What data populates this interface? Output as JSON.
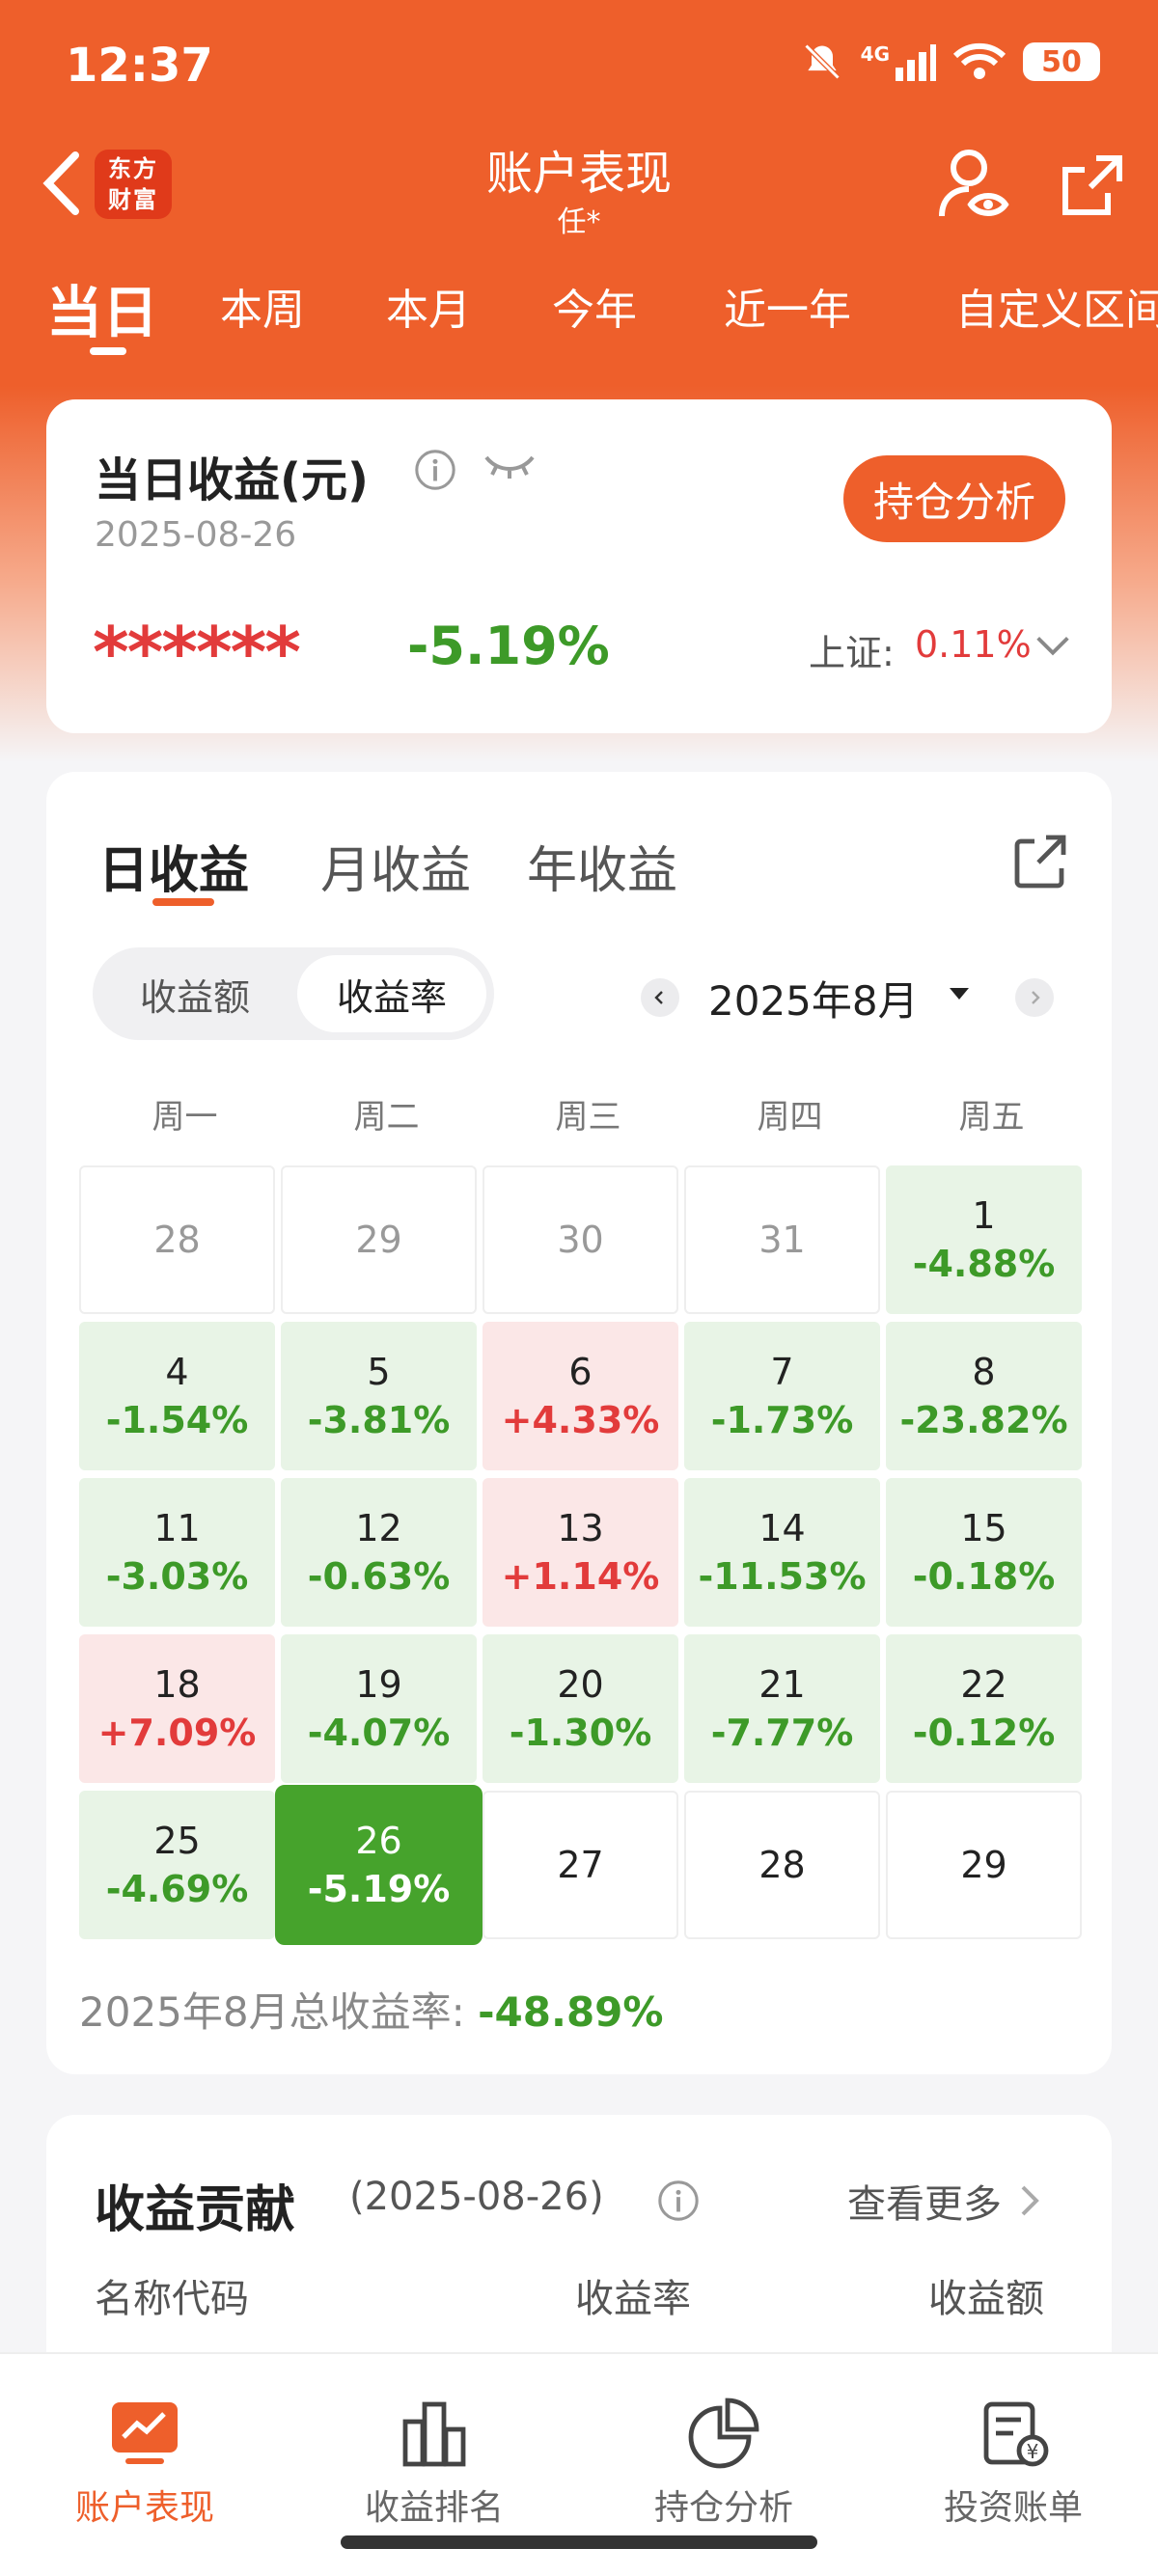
{
  "status_bar": {
    "time": "12:37",
    "network": "4G",
    "battery": "50"
  },
  "header": {
    "logo_line1": "东方",
    "logo_line2": "财富",
    "title": "账户表现",
    "subtitle": "任*"
  },
  "period_tabs": [
    "当日",
    "本周",
    "本月",
    "今年",
    "近一年",
    "自定义区间"
  ],
  "daily": {
    "title": "当日收益(元)",
    "date": "2025-08-26",
    "amount_masked": "******",
    "rate": "-5.19%",
    "index_label": "上证:",
    "index_value": "0.11%",
    "analysis_button": "持仓分析"
  },
  "returns_tabs": [
    "日收益",
    "月收益",
    "年收益"
  ],
  "toggle": {
    "amount": "收益额",
    "rate": "收益率"
  },
  "calendar": {
    "month_label": "2025年8月",
    "weekdays": [
      "周一",
      "周二",
      "周三",
      "周四",
      "周五"
    ],
    "cells": [
      {
        "day": "28",
        "pct": "",
        "type": "other"
      },
      {
        "day": "29",
        "pct": "",
        "type": "other"
      },
      {
        "day": "30",
        "pct": "",
        "type": "other"
      },
      {
        "day": "31",
        "pct": "",
        "type": "other"
      },
      {
        "day": "1",
        "pct": "-4.88%",
        "type": "down"
      },
      {
        "day": "4",
        "pct": "-1.54%",
        "type": "down"
      },
      {
        "day": "5",
        "pct": "-3.81%",
        "type": "down"
      },
      {
        "day": "6",
        "pct": "+4.33%",
        "type": "up"
      },
      {
        "day": "7",
        "pct": "-1.73%",
        "type": "down"
      },
      {
        "day": "8",
        "pct": "-23.82%",
        "type": "down"
      },
      {
        "day": "11",
        "pct": "-3.03%",
        "type": "down"
      },
      {
        "day": "12",
        "pct": "-0.63%",
        "type": "down"
      },
      {
        "day": "13",
        "pct": "+1.14%",
        "type": "up"
      },
      {
        "day": "14",
        "pct": "-11.53%",
        "type": "down"
      },
      {
        "day": "15",
        "pct": "-0.18%",
        "type": "down"
      },
      {
        "day": "18",
        "pct": "+7.09%",
        "type": "up"
      },
      {
        "day": "19",
        "pct": "-4.07%",
        "type": "down"
      },
      {
        "day": "20",
        "pct": "-1.30%",
        "type": "down"
      },
      {
        "day": "21",
        "pct": "-7.77%",
        "type": "down"
      },
      {
        "day": "22",
        "pct": "-0.12%",
        "type": "down"
      },
      {
        "day": "25",
        "pct": "-4.69%",
        "type": "down"
      },
      {
        "day": "26",
        "pct": "-5.19%",
        "type": "sel"
      },
      {
        "day": "27",
        "pct": "",
        "type": "future"
      },
      {
        "day": "28",
        "pct": "",
        "type": "future"
      },
      {
        "day": "29",
        "pct": "",
        "type": "future"
      }
    ],
    "total_label": "2025年8月总收益率:",
    "total_value": "-48.89%"
  },
  "contribution": {
    "title": "收益贡献",
    "date": "(2025-08-26)",
    "more": "查看更多",
    "columns": [
      "名称代码",
      "收益率",
      "收益额"
    ]
  },
  "bottom_nav": [
    {
      "label": "账户表现",
      "icon": "chart-icon",
      "active": true
    },
    {
      "label": "收益排名",
      "icon": "bar-chart-icon",
      "active": false
    },
    {
      "label": "持仓分析",
      "icon": "pie-chart-icon",
      "active": false
    },
    {
      "label": "投资账单",
      "icon": "bill-icon",
      "active": false
    }
  ],
  "colors": {
    "accent": "#ee5f2b",
    "up": "#e23b3b",
    "down": "#3d9a28",
    "selected": "#46a32c"
  }
}
